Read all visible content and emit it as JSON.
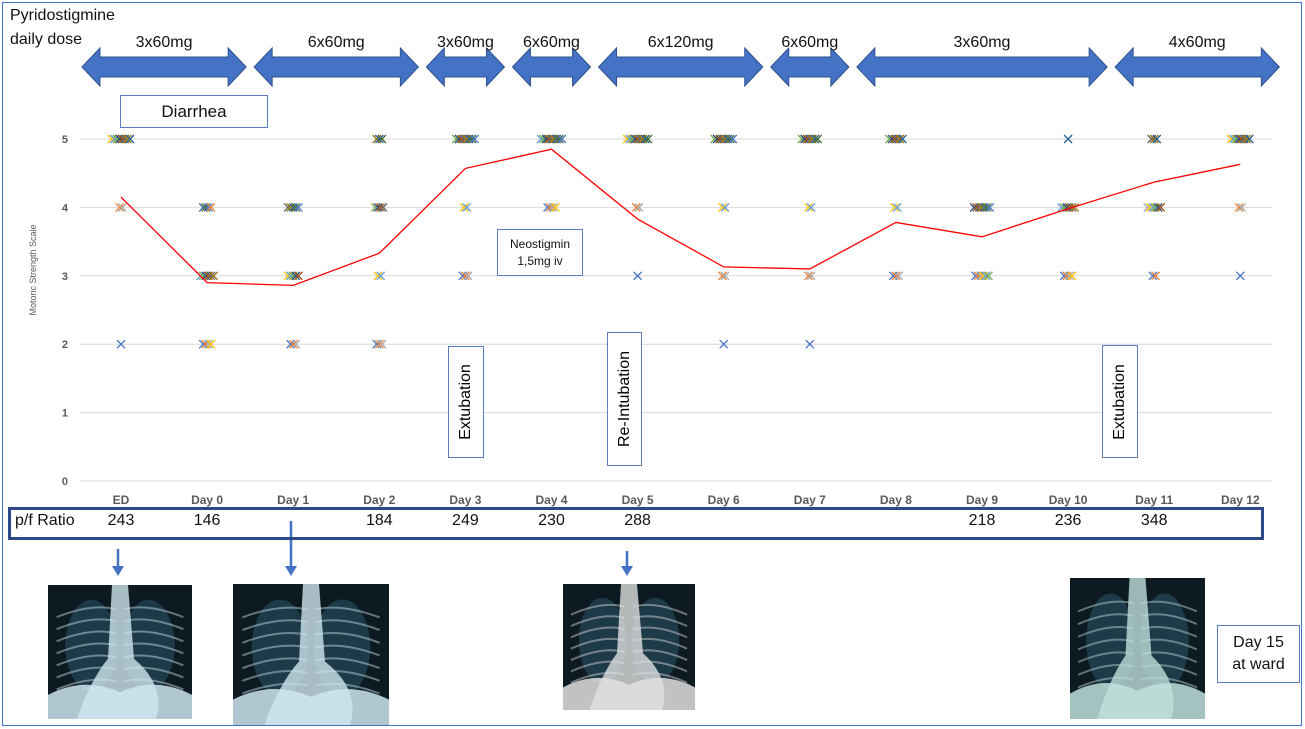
{
  "dose_header": {
    "title": "Pyridostigmine\ndaily dose",
    "segments": [
      {
        "label": "3x60mg",
        "from": "ED",
        "to": "Day 0"
      },
      {
        "label": "6x60mg",
        "from": "Day 1",
        "to": "Day 2"
      },
      {
        "label": "3x60mg",
        "from": "Day 3",
        "to": "Day 3"
      },
      {
        "label": "6x60mg",
        "from": "Day 4",
        "to": "Day 4"
      },
      {
        "label": "6x120mg",
        "from": "Day 5",
        "to": "Day 6"
      },
      {
        "label": "6x60mg",
        "from": "Day 7",
        "to": "Day 7"
      },
      {
        "label": "3x60mg",
        "from": "Day 8",
        "to": "Day 10"
      },
      {
        "label": "4x60mg",
        "from": "Day 11",
        "to": "Day 12"
      }
    ],
    "arrow_color": "#4472c4"
  },
  "annotations": {
    "diarrhea": "Diarrhea",
    "neostigmin": "Neostigmin\n1,5mg iv",
    "extubation_1": "Extubation",
    "reintubation": "Re-Intubation",
    "extubation_2": "Extubation",
    "day15": "Day 15\nat ward"
  },
  "chart_data": {
    "type": "scatter",
    "title": "",
    "ylabel": "Motoric Strength Scale",
    "xlabel": "",
    "categories": [
      "ED",
      "Day 0",
      "Day 1",
      "Day 2",
      "Day 3",
      "Day 4",
      "Day 5",
      "Day 6",
      "Day 7",
      "Day 8",
      "Day 9",
      "Day 10",
      "Day 11",
      "Day 12"
    ],
    "ylim": [
      0,
      5
    ],
    "yticks": [
      0,
      1,
      2,
      3,
      4,
      5
    ],
    "grid": true,
    "points_by_day": [
      [
        5,
        5,
        5,
        5,
        5,
        5,
        5,
        5,
        4,
        4,
        2
      ],
      [
        4,
        4,
        4,
        4,
        3,
        3,
        3,
        3,
        3,
        3,
        2,
        2,
        2,
        2
      ],
      [
        4,
        4,
        4,
        4,
        4,
        3,
        3,
        3,
        3,
        3,
        2,
        2,
        2
      ],
      [
        5,
        5,
        5,
        4,
        4,
        4,
        4,
        3,
        3,
        2,
        2,
        2
      ],
      [
        5,
        5,
        5,
        5,
        5,
        5,
        5,
        5,
        4,
        4,
        3,
        3,
        3
      ],
      [
        5,
        5,
        5,
        5,
        5,
        5,
        5,
        5,
        5,
        4,
        4,
        4,
        4
      ],
      [
        5,
        5,
        5,
        5,
        5,
        5,
        5,
        5,
        5,
        4,
        4,
        3
      ],
      [
        5,
        5,
        5,
        5,
        5,
        5,
        5,
        5,
        4,
        4,
        3,
        3,
        2
      ],
      [
        5,
        5,
        5,
        5,
        5,
        5,
        5,
        4,
        4,
        3,
        3,
        2
      ],
      [
        5,
        5,
        5,
        5,
        5,
        5,
        4,
        4,
        3,
        3,
        3
      ],
      [
        4,
        4,
        4,
        4,
        4,
        4,
        4,
        3,
        3,
        3,
        3,
        3,
        3
      ],
      [
        5,
        4,
        4,
        4,
        4,
        4,
        4,
        3,
        3,
        3,
        3
      ],
      [
        5,
        5,
        5,
        4,
        4,
        4,
        4,
        4,
        4,
        3,
        3
      ],
      [
        5,
        5,
        5,
        5,
        5,
        5,
        5,
        5,
        4,
        4,
        3
      ]
    ],
    "mean_line": [
      4.15,
      2.9,
      2.86,
      3.33,
      4.57,
      4.85,
      3.83,
      3.13,
      3.1,
      3.78,
      3.57,
      3.98,
      4.37,
      4.63
    ],
    "mean_line_color": "#ff0000",
    "marker_colors": [
      "#4472c4",
      "#ed7d31",
      "#a5a5a5",
      "#ffc000",
      "#5b9bd5",
      "#70ad47",
      "#264478",
      "#9e480e",
      "#636363",
      "#997300",
      "#255e91",
      "#43682b"
    ]
  },
  "pf_ratio": {
    "label": "p/f Ratio",
    "values": [
      {
        "day": "ED",
        "value": "243"
      },
      {
        "day": "Day 0",
        "value": "146"
      },
      {
        "day": "Day 2",
        "value": "184"
      },
      {
        "day": "Day 3",
        "value": "249"
      },
      {
        "day": "Day 4",
        "value": "230"
      },
      {
        "day": "Day 5",
        "value": "288"
      },
      {
        "day": "Day 9",
        "value": "218"
      },
      {
        "day": "Day 10",
        "value": "236"
      },
      {
        "day": "Day 11",
        "value": "348"
      }
    ]
  },
  "xrays": [
    {
      "name": "xray-ed",
      "day": "ED",
      "tint": "#cfe6ee",
      "arrow": true
    },
    {
      "name": "xray-day1",
      "day": "Day 1",
      "tint": "#cfe6ee",
      "arrow": true
    },
    {
      "name": "xray-day5",
      "day": "Day 5",
      "tint": "#e0e0e0",
      "arrow": true
    },
    {
      "name": "xray-day15",
      "day": "Day 15",
      "tint": "#bfe0dc",
      "arrow": false
    }
  ]
}
